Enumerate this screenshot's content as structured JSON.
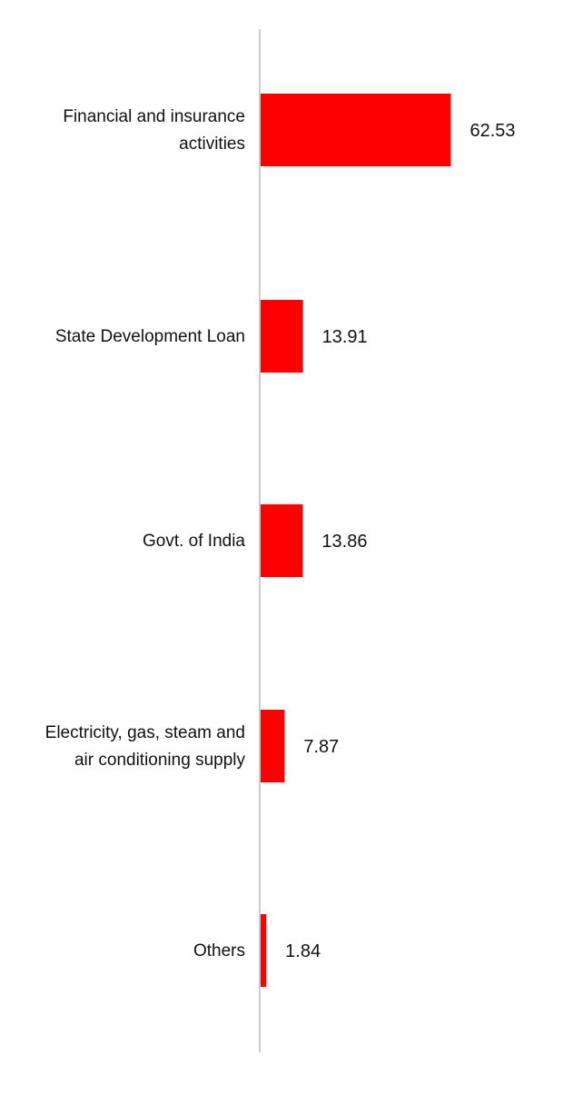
{
  "chart_data": {
    "type": "bar",
    "orientation": "horizontal",
    "categories": [
      "Financial and insurance activities",
      "State Development Loan",
      "Govt. of India",
      "Electricity, gas, steam and air conditioning supply",
      "Others"
    ],
    "category_lines": [
      [
        "Financial and insurance",
        "activities"
      ],
      [
        "State Development Loan"
      ],
      [
        "Govt. of India"
      ],
      [
        "Electricity, gas, steam and",
        "air conditioning supply"
      ],
      [
        "Others"
      ]
    ],
    "values": [
      62.53,
      13.91,
      13.86,
      7.87,
      1.84
    ],
    "value_labels": [
      "62.53",
      "13.91",
      "13.86",
      "7.87",
      "1.84"
    ],
    "title": "",
    "xlabel": "",
    "ylabel": "",
    "xlim": [
      0,
      70
    ],
    "grid": false,
    "legend": "none",
    "bar_color": "#ff0000",
    "axis_color": "#cccccc"
  }
}
